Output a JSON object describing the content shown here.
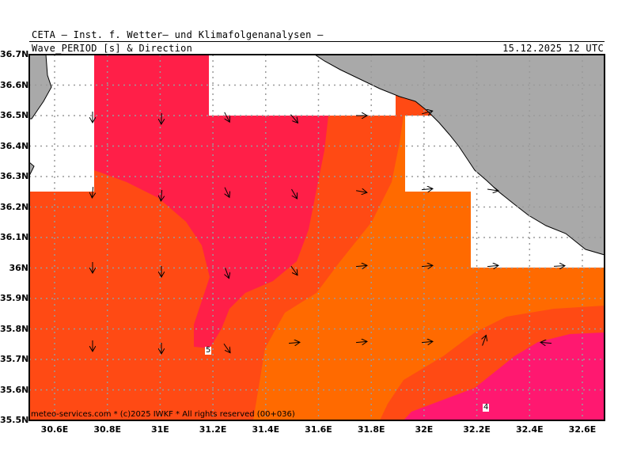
{
  "header": {
    "title_line1": "CETA — Inst. f. Wetter— und Klimafolgenanalysen —",
    "title_line2": "Wave_PERIOD [s] & Direction",
    "datetime": "15.12.2025 12 UTC"
  },
  "footer": {
    "credit": "meteo-services.com * (c)2025 IWKF * All rights reserved (00+036)"
  },
  "axes": {
    "lat_labels": [
      "36.7N",
      "36.6N",
      "36.5N",
      "36.4N",
      "36.3N",
      "36.2N",
      "36.1N",
      "36N",
      "35.9N",
      "35.8N",
      "35.7N",
      "35.6N",
      "35.5N"
    ],
    "lon_labels": [
      "30.6E",
      "30.8E",
      "31E",
      "31.2E",
      "31.4E",
      "31.6E",
      "31.8E",
      "32E",
      "32.2E",
      "32.4E",
      "32.6E"
    ]
  },
  "contour_labels": [
    "5",
    "4"
  ],
  "colors": {
    "land": "#a9a9a9",
    "sea_nodata": "#ffffff",
    "period_4_5s": "#ff6a00",
    "period_5_6s": "#ff4a14",
    "period_6_7s": "#ff1f48",
    "period_high_east": "#ff1870",
    "grid": "#9a9a9a"
  }
}
